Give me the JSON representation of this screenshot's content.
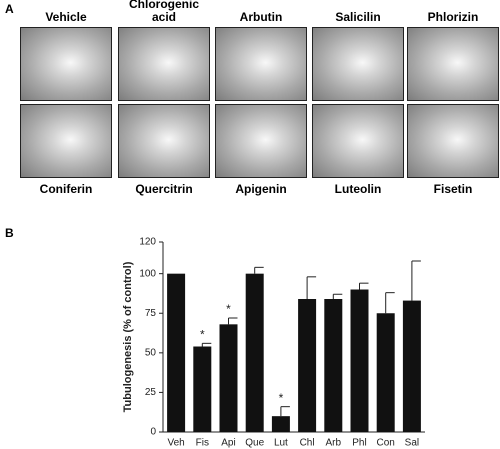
{
  "panel_labels": [
    "A",
    "B"
  ],
  "panel_a": {
    "top_labels": [
      "Vehicle",
      "Chlorogenic acid",
      "Arbutin",
      "Salicilin",
      "Phlorizin"
    ],
    "bottom_labels": [
      "Coniferin",
      "Quercitrin",
      "Apigenin",
      "Luteolin",
      "Fisetin"
    ]
  },
  "chart_data": {
    "type": "bar",
    "y_label": "Tubulogenesis (% of control)",
    "categories": [
      "Veh",
      "Fis",
      "Api",
      "Que",
      "Lut",
      "Chl",
      "Arb",
      "Phl",
      "Con",
      "Sal"
    ],
    "values": [
      100,
      54,
      68,
      100,
      10,
      84,
      84,
      90,
      75,
      83
    ],
    "errors": [
      null,
      2,
      4,
      4,
      6,
      14,
      3,
      4,
      13,
      25
    ],
    "significance": [
      null,
      "*",
      "*",
      null,
      "*",
      null,
      null,
      null,
      null,
      null
    ],
    "color": "#111111",
    "ylim": [
      0,
      120
    ],
    "yticks": [
      0,
      25,
      50,
      75,
      100,
      120
    ]
  }
}
